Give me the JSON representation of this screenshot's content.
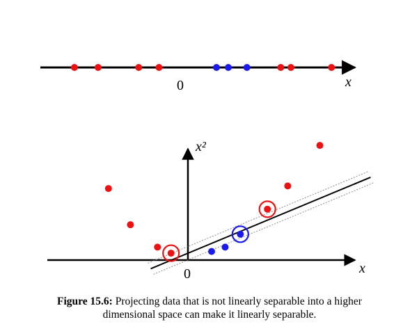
{
  "colors": {
    "class_a": "#ee1111",
    "class_b": "#1a1aee",
    "axis": "#000000",
    "margin": "#8c8c8c"
  },
  "top_plot": {
    "x_label": "x",
    "origin_label": "0",
    "points": [
      {
        "x": -6.3,
        "class": "a"
      },
      {
        "x": -4.9,
        "class": "a"
      },
      {
        "x": -2.5,
        "class": "a"
      },
      {
        "x": -1.3,
        "class": "a"
      },
      {
        "x": 2.1,
        "class": "b"
      },
      {
        "x": 2.8,
        "class": "b"
      },
      {
        "x": 3.9,
        "class": "b"
      },
      {
        "x": 5.9,
        "class": "a"
      },
      {
        "x": 6.5,
        "class": "a"
      },
      {
        "x": 8.9,
        "class": "a"
      }
    ]
  },
  "bottom_plot": {
    "x_label": "x",
    "y_label": "x²",
    "origin_label": "0",
    "points": [
      {
        "x": -4.7,
        "y": 8.3,
        "class": "a",
        "circled": false
      },
      {
        "x": -3.4,
        "y": 4.1,
        "class": "a",
        "circled": false
      },
      {
        "x": -1.8,
        "y": 1.5,
        "class": "a",
        "circled": false
      },
      {
        "x": -1.0,
        "y": 0.8,
        "class": "a",
        "circled": true
      },
      {
        "x": 1.4,
        "y": 1.0,
        "class": "b",
        "circled": false
      },
      {
        "x": 2.2,
        "y": 1.5,
        "class": "b",
        "circled": false
      },
      {
        "x": 3.1,
        "y": 3.0,
        "class": "b",
        "circled": true
      },
      {
        "x": 4.7,
        "y": 5.9,
        "class": "a",
        "circled": true
      },
      {
        "x": 5.9,
        "y": 8.6,
        "class": "a",
        "circled": false
      },
      {
        "x": 7.8,
        "y": 13.3,
        "class": "a",
        "circled": false
      }
    ],
    "separator": {
      "x1": -2.2,
      "y1": -1.0,
      "x2": 10.8,
      "y2": 9.6
    }
  },
  "caption": {
    "label": "Figure 15.6:",
    "text_line1": "Projecting data that is not linearly separable into a higher",
    "text_line2": "dimensional space can make it linearly separable."
  }
}
